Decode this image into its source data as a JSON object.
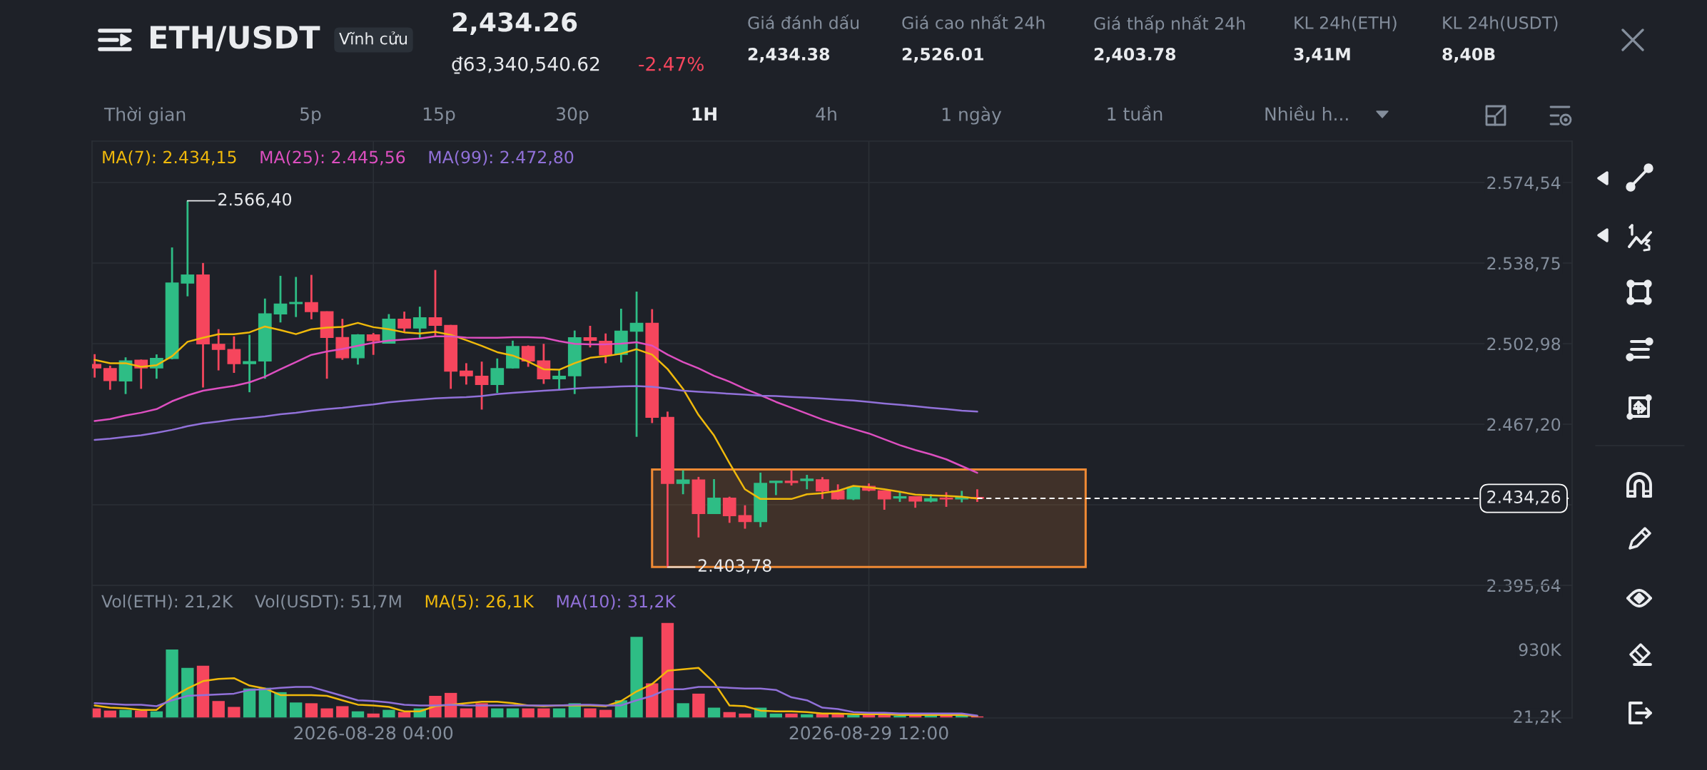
{
  "chart_data": [
    {
      "type": "other",
      "title": "ETH/USDT",
      "annotations": [
        "Vĩnh cửu",
        "2,434.26",
        "₫63,340,540.62",
        "-2.47%",
        "Giá đánh dấu",
        "2,434.38",
        "Giá cao nhất 24h",
        "2,526.01",
        "Giá thấp nhất 24h",
        "2,403.78",
        "KL 24h(ETH)",
        "3,41M",
        "KL 24h(USDT)",
        "8,40B",
        "Thời gian",
        "5p",
        "15p",
        "30p",
        "1H",
        "4h",
        "1 ngày",
        "1 tuần",
        "Nhiều h..."
      ]
    },
    {
      "type": "candlestick",
      "x": [
        "2026-08-27T10:00",
        "2026-08-27T11:00",
        "2026-08-27T12:00",
        "2026-08-27T13:00",
        "2026-08-27T14:00",
        "2026-08-27T15:00",
        "2026-08-27T16:00",
        "2026-08-27T17:00",
        "2026-08-27T18:00",
        "2026-08-27T19:00",
        "2026-08-27T20:00",
        "2026-08-27T21:00",
        "2026-08-27T22:00",
        "2026-08-27T23:00",
        "2026-08-28T00:00",
        "2026-08-28T01:00",
        "2026-08-28T02:00",
        "2026-08-28T03:00",
        "2026-08-28T04:00",
        "2026-08-28T05:00",
        "2026-08-28T06:00",
        "2026-08-28T07:00",
        "2026-08-28T08:00",
        "2026-08-28T09:00",
        "2026-08-28T10:00",
        "2026-08-28T11:00",
        "2026-08-28T12:00",
        "2026-08-28T13:00",
        "2026-08-28T14:00",
        "2026-08-28T15:00",
        "2026-08-28T16:00",
        "2026-08-28T17:00",
        "2026-08-28T18:00",
        "2026-08-28T19:00",
        "2026-08-28T20:00",
        "2026-08-28T21:00",
        "2026-08-28T22:00",
        "2026-08-28T23:00",
        "2026-08-29T00:00",
        "2026-08-29T01:00",
        "2026-08-29T02:00",
        "2026-08-29T03:00",
        "2026-08-29T04:00",
        "2026-08-29T05:00",
        "2026-08-29T06:00",
        "2026-08-29T07:00",
        "2026-08-29T08:00",
        "2026-08-29T09:00",
        "2026-08-29T10:00",
        "2026-08-29T11:00",
        "2026-08-29T12:00",
        "2026-08-29T13:00",
        "2026-08-29T14:00",
        "2026-08-29T15:00",
        "2026-08-29T16:00",
        "2026-08-29T17:00",
        "2026-08-29T18:00",
        "2026-08-29T19:00"
      ],
      "ohlc": [
        [
          2493.7,
          2498.3,
          2487.9,
          2492.2
        ],
        [
          2491.9,
          2493.2,
          2482.5,
          2486.6
        ],
        [
          2486.4,
          2496.9,
          2480.6,
          2495.3
        ],
        [
          2495.6,
          2495.9,
          2482.9,
          2492.2
        ],
        [
          2492.2,
          2498.2,
          2487.4,
          2496.4
        ],
        [
          2496.4,
          2545.7,
          2496.0,
          2529.9
        ],
        [
          2529.9,
          2566.4,
          2524.0,
          2533.5
        ],
        [
          2533.5,
          2538.8,
          2483.5,
          2502.9
        ],
        [
          2502.7,
          2509.4,
          2491.1,
          2500.4
        ],
        [
          2500.4,
          2506.2,
          2490.0,
          2494.1
        ],
        [
          2494.1,
          2506.9,
          2481.4,
          2495.0
        ],
        [
          2495.3,
          2523.0,
          2487.4,
          2516.2
        ],
        [
          2516.2,
          2533.1,
          2512.4,
          2520.6
        ],
        [
          2520.8,
          2532.6,
          2514.8,
          2521.3
        ],
        [
          2521.2,
          2533.5,
          2513.8,
          2517.2
        ],
        [
          2517.2,
          2517.3,
          2487.4,
          2505.7
        ],
        [
          2505.7,
          2514.0,
          2495.8,
          2496.7
        ],
        [
          2496.7,
          2507.2,
          2493.7,
          2506.9
        ],
        [
          2506.9,
          2507.7,
          2498.0,
          2504.3
        ],
        [
          2503.2,
          2516.1,
          2503.0,
          2513.8
        ],
        [
          2513.8,
          2517.2,
          2508.0,
          2509.9
        ],
        [
          2509.9,
          2519.4,
          2505.3,
          2514.5
        ],
        [
          2514.5,
          2535.7,
          2506.2,
          2511.1
        ],
        [
          2511.1,
          2511.3,
          2482.9,
          2490.8
        ],
        [
          2490.8,
          2494.3,
          2484.8,
          2488.7
        ],
        [
          2488.5,
          2495.0,
          2473.7,
          2484.8
        ],
        [
          2484.8,
          2496.4,
          2481.1,
          2491.9
        ],
        [
          2492.2,
          2504.3,
          2491.9,
          2501.7
        ],
        [
          2501.7,
          2502.2,
          2492.7,
          2495.3
        ],
        [
          2495.3,
          2502.9,
          2485.1,
          2487.4
        ],
        [
          2487.4,
          2491.6,
          2482.1,
          2488.5
        ],
        [
          2488.7,
          2508.8,
          2480.6,
          2505.6
        ],
        [
          2505.6,
          2510.9,
          2501.3,
          2504.5
        ],
        [
          2504.0,
          2507.5,
          2494.3,
          2498.0
        ],
        [
          2498.2,
          2518.5,
          2494.6,
          2508.5
        ],
        [
          2508.5,
          2526.1,
          2461.6,
          2512.0
        ],
        [
          2512.0,
          2518.3,
          2467.7,
          2470.3
        ],
        [
          2470.2,
          2472.8,
          2403.78,
          2440.9
        ],
        [
          2440.9,
          2446.7,
          2436.1,
          2442.4
        ],
        [
          2442.4,
          2443.8,
          2416.9,
          2427.5
        ],
        [
          2427.5,
          2442.8,
          2427.3,
          2434.4
        ],
        [
          2434.4,
          2435.0,
          2423.4,
          2426.6
        ],
        [
          2426.6,
          2431.2,
          2420.8,
          2424.0
        ],
        [
          2424.0,
          2445.7,
          2421.5,
          2440.9
        ],
        [
          2441.3,
          2442.0,
          2435.7,
          2441.9
        ],
        [
          2441.9,
          2446.7,
          2440.0,
          2441.3
        ],
        [
          2442.2,
          2444.7,
          2438.3,
          2442.8
        ],
        [
          2442.5,
          2443.7,
          2434.0,
          2437.6
        ],
        [
          2437.6,
          2440.5,
          2433.7,
          2434.0
        ],
        [
          2434.0,
          2440.0,
          2433.5,
          2439.2
        ],
        [
          2439.6,
          2440.9,
          2437.4,
          2437.9
        ],
        [
          2437.6,
          2437.8,
          2429.2,
          2434.0
        ],
        [
          2434.4,
          2437.0,
          2432.7,
          2435.0
        ],
        [
          2435.0,
          2435.2,
          2430.1,
          2433.1
        ],
        [
          2433.1,
          2436.1,
          2432.5,
          2434.1
        ],
        [
          2434.4,
          2437.0,
          2430.5,
          2434.0
        ],
        [
          2434.0,
          2437.6,
          2432.5,
          2434.8
        ],
        [
          2434.7,
          2438.3,
          2432.7,
          2434.26
        ]
      ],
      "colors": [
        "#f6465d",
        "#f6465d",
        "#2ebd85",
        "#f6465d",
        "#2ebd85",
        "#2ebd85",
        "#2ebd85",
        "#f6465d",
        "#f6465d",
        "#f6465d",
        "#2ebd85",
        "#2ebd85",
        "#2ebd85",
        "#2ebd85",
        "#f6465d",
        "#f6465d",
        "#f6465d",
        "#2ebd85",
        "#f6465d",
        "#2ebd85",
        "#f6465d",
        "#2ebd85",
        "#f6465d",
        "#f6465d",
        "#f6465d",
        "#f6465d",
        "#2ebd85",
        "#2ebd85",
        "#f6465d",
        "#f6465d",
        "#2ebd85",
        "#2ebd85",
        "#f6465d",
        "#f6465d",
        "#2ebd85",
        "#2ebd85",
        "#f6465d",
        "#f6465d",
        "#2ebd85",
        "#f6465d",
        "#2ebd85",
        "#f6465d",
        "#f6465d",
        "#2ebd85",
        "#2ebd85",
        "#f6465d",
        "#2ebd85",
        "#f6465d",
        "#f6465d",
        "#2ebd85",
        "#f6465d",
        "#f6465d",
        "#2ebd85",
        "#f6465d",
        "#2ebd85",
        "#f6465d",
        "#2ebd85",
        "#f6465d"
      ],
      "series": [
        {
          "type": "line",
          "name": "MA(7): 2.434,15",
          "color": "#f0b90b",
          "values": [
            2495.8,
            2494.3,
            2494.3,
            2492.7,
            2493.4,
            2497.4,
            2503.8,
            2505.6,
            2507.2,
            2507.2,
            2508.0,
            2510.6,
            2509.0,
            2507.2,
            2509.4,
            2510.1,
            2510.4,
            2512.2,
            2510.3,
            2509.4,
            2508.0,
            2507.5,
            2508.2,
            2506.9,
            2504.5,
            2502.0,
            2499.2,
            2497.7,
            2495.0,
            2491.6,
            2491.4,
            2494.3,
            2496.7,
            2497.4,
            2498.5,
            2500.5,
            2498.1,
            2491.7,
            2482.9,
            2471.3,
            2462.2,
            2449.9,
            2438.3,
            2434.0,
            2434.0,
            2434.0,
            2436.1,
            2436.6,
            2437.6,
            2439.8,
            2439.2,
            2438.3,
            2437.2,
            2435.9,
            2435.6,
            2435.4,
            2435.0,
            2434.2
          ]
        },
        {
          "type": "line",
          "name": "MA(25): 2.445,56",
          "color": "#dd4fc0",
          "values": [
            2468.6,
            2469.5,
            2471.1,
            2472.3,
            2473.9,
            2477.4,
            2480.0,
            2482.1,
            2483.2,
            2484.2,
            2485.8,
            2488.3,
            2491.6,
            2494.8,
            2498.0,
            2499.5,
            2500.6,
            2502.0,
            2503.4,
            2504.3,
            2504.8,
            2505.3,
            2506.2,
            2506.2,
            2505.7,
            2505.6,
            2505.6,
            2505.8,
            2505.8,
            2505.6,
            2504.1,
            2502.9,
            2502.7,
            2502.7,
            2503.0,
            2503.6,
            2502.1,
            2498.1,
            2494.8,
            2492.0,
            2488.7,
            2486.1,
            2482.9,
            2480.1,
            2477.1,
            2474.5,
            2471.9,
            2469.3,
            2467.1,
            2465.1,
            2463.1,
            2460.5,
            2457.9,
            2455.7,
            2453.8,
            2451.6,
            2448.6,
            2445.6
          ]
        },
        {
          "type": "line",
          "name": "MA(99): 2.472,80",
          "color": "#9171d9",
          "values": [
            2460.2,
            2460.8,
            2461.6,
            2462.3,
            2463.4,
            2464.7,
            2466.3,
            2467.6,
            2468.4,
            2469.3,
            2470.0,
            2470.7,
            2471.6,
            2472.3,
            2473.2,
            2473.9,
            2474.5,
            2475.3,
            2476.0,
            2476.9,
            2477.6,
            2478.1,
            2478.7,
            2479.0,
            2479.2,
            2479.7,
            2480.6,
            2481.1,
            2481.6,
            2482.1,
            2482.5,
            2483.0,
            2483.4,
            2483.7,
            2484.0,
            2484.1,
            2483.8,
            2483.0,
            2482.1,
            2481.6,
            2481.2,
            2480.7,
            2480.3,
            2479.9,
            2479.7,
            2479.3,
            2479.0,
            2478.6,
            2478.1,
            2477.7,
            2477.1,
            2476.4,
            2475.8,
            2475.2,
            2474.5,
            2473.9,
            2473.2,
            2472.8
          ]
        }
      ],
      "xlim": [
        "2026-08-27T09:50",
        "2026-08-31T09:25"
      ],
      "xticks": [
        {
          "value": "2026-08-28T04:00",
          "label": null
        },
        {
          "value": "2026-08-29T12:00",
          "label": null
        }
      ],
      "ylim": [
        2395.64,
        2592.9
      ],
      "yticks": [
        {
          "value": 2574.54,
          "label": "2.574,54"
        },
        {
          "value": 2538.75,
          "label": "2.538,75"
        },
        {
          "value": 2502.98,
          "label": "2.502,98"
        },
        {
          "value": 2467.2,
          "label": "2.467,20"
        },
        {
          "value": 2431.42,
          "label": null
        },
        {
          "value": 2395.64,
          "label": "2.395,64"
        }
      ],
      "grid": true,
      "tick_labels": "y",
      "legend": "top left",
      "annotations": [
        {
          "text": "2.566,40",
          "x": "2026-08-27T16:00",
          "y": 2566.4
        },
        {
          "text": "2.403,78",
          "x": "2026-08-28T23:00",
          "y": 2403.78
        }
      ],
      "ref_lines": [
        {
          "axis": "y",
          "value": 2434.26,
          "label": "2.434,26",
          "line_style": "dashed",
          "color": "#ffffff"
        }
      ],
      "bands": [
        {
          "axis": "y",
          "from": 2403.78,
          "to": 2447.1,
          "color": "#f08a34"
        }
      ]
    },
    {
      "type": "bar",
      "x": [
        "2026-08-27T10:00",
        "2026-08-27T11:00",
        "2026-08-27T12:00",
        "2026-08-27T13:00",
        "2026-08-27T14:00",
        "2026-08-27T15:00",
        "2026-08-27T16:00",
        "2026-08-27T17:00",
        "2026-08-27T18:00",
        "2026-08-27T19:00",
        "2026-08-27T20:00",
        "2026-08-27T21:00",
        "2026-08-27T22:00",
        "2026-08-27T23:00",
        "2026-08-28T00:00",
        "2026-08-28T01:00",
        "2026-08-28T02:00",
        "2026-08-28T03:00",
        "2026-08-28T04:00",
        "2026-08-28T05:00",
        "2026-08-28T06:00",
        "2026-08-28T07:00",
        "2026-08-28T08:00",
        "2026-08-28T09:00",
        "2026-08-28T10:00",
        "2026-08-28T11:00",
        "2026-08-28T12:00",
        "2026-08-28T13:00",
        "2026-08-28T14:00",
        "2026-08-28T15:00",
        "2026-08-28T16:00",
        "2026-08-28T17:00",
        "2026-08-28T18:00",
        "2026-08-28T19:00",
        "2026-08-28T20:00",
        "2026-08-28T21:00",
        "2026-08-28T22:00",
        "2026-08-28T23:00",
        "2026-08-29T00:00",
        "2026-08-29T01:00",
        "2026-08-29T02:00",
        "2026-08-29T03:00",
        "2026-08-29T04:00",
        "2026-08-29T05:00",
        "2026-08-29T06:00",
        "2026-08-29T07:00",
        "2026-08-29T08:00",
        "2026-08-29T09:00",
        "2026-08-29T10:00",
        "2026-08-29T11:00",
        "2026-08-29T12:00",
        "2026-08-29T13:00",
        "2026-08-29T14:00",
        "2026-08-29T15:00",
        "2026-08-29T16:00",
        "2026-08-29T17:00",
        "2026-08-29T18:00",
        "2026-08-29T19:00"
      ],
      "series": [
        {
          "type": "bar",
          "name": "Vol(ETH): 21,2K",
          "colors": [
            "#f6465d",
            "#f6465d",
            "#2ebd85",
            "#f6465d",
            "#2ebd85",
            "#2ebd85",
            "#2ebd85",
            "#f6465d",
            "#f6465d",
            "#f6465d",
            "#2ebd85",
            "#2ebd85",
            "#2ebd85",
            "#2ebd85",
            "#f6465d",
            "#f6465d",
            "#f6465d",
            "#2ebd85",
            "#f6465d",
            "#2ebd85",
            "#f6465d",
            "#2ebd85",
            "#f6465d",
            "#f6465d",
            "#f6465d",
            "#f6465d",
            "#2ebd85",
            "#2ebd85",
            "#f6465d",
            "#f6465d",
            "#2ebd85",
            "#2ebd85",
            "#f6465d",
            "#f6465d",
            "#2ebd85",
            "#2ebd85",
            "#f6465d",
            "#f6465d",
            "#2ebd85",
            "#f6465d",
            "#2ebd85",
            "#f6465d",
            "#f6465d",
            "#2ebd85",
            "#2ebd85",
            "#f6465d",
            "#2ebd85",
            "#f6465d",
            "#f6465d",
            "#2ebd85",
            "#f6465d",
            "#f6465d",
            "#2ebd85",
            "#f6465d",
            "#2ebd85",
            "#f6465d",
            "#2ebd85",
            "#f6465d"
          ],
          "values": [
            130,
            100,
            110,
            100,
            90,
            930,
            680,
            710,
            230,
            150,
            400,
            410,
            350,
            210,
            200,
            130,
            160,
            90,
            60,
            110,
            80,
            130,
            300,
            340,
            130,
            200,
            130,
            130,
            130,
            130,
            130,
            200,
            130,
            110,
            240,
            1100,
            470,
            1290,
            200,
            330,
            140,
            80,
            60,
            140,
            60,
            60,
            50,
            60,
            50,
            40,
            40,
            40,
            30,
            30,
            30,
            30,
            30,
            21.2
          ]
        },
        {
          "type": "line",
          "name": "MA(5): 26,1K",
          "color": "#f0b90b",
          "values": [
            170,
            140,
            130,
            110,
            110,
            280,
            400,
            500,
            530,
            540,
            440,
            400,
            310,
            310,
            310,
            300,
            240,
            180,
            170,
            150,
            90,
            90,
            160,
            180,
            200,
            220,
            220,
            200,
            170,
            160,
            170,
            170,
            170,
            160,
            230,
            360,
            460,
            640,
            660,
            680,
            480,
            170,
            160,
            100,
            90,
            90,
            80,
            60,
            60,
            50,
            50,
            50,
            40,
            40,
            40,
            40,
            40,
            26.1
          ]
        },
        {
          "type": "line",
          "name": "MA(10): 31,2K",
          "color": "#9171d9",
          "values": [
            200,
            190,
            180,
            180,
            160,
            240,
            300,
            310,
            320,
            330,
            380,
            390,
            410,
            420,
            420,
            360,
            300,
            240,
            230,
            210,
            180,
            170,
            170,
            180,
            170,
            170,
            170,
            170,
            170,
            170,
            170,
            180,
            180,
            170,
            170,
            240,
            300,
            390,
            390,
            420,
            420,
            410,
            400,
            400,
            380,
            280,
            240,
            140,
            120,
            80,
            70,
            70,
            60,
            60,
            60,
            60,
            60,
            31.2
          ]
        }
      ],
      "annotations": [
        "Vol(USDT): 51,7M"
      ],
      "xlim": [
        "2026-08-27T09:50",
        "2026-08-31T09:25"
      ],
      "xticks": [
        {
          "value": "2026-08-28T04:00",
          "label": "2026-08-28 04:00"
        },
        {
          "value": "2026-08-29T12:00",
          "label": "2026-08-29 12:00"
        }
      ],
      "ylim": [
        0,
        1800
      ],
      "yticks": [
        {
          "value": 930,
          "label": "930K"
        },
        {
          "value": 21.2,
          "label": "21,2K"
        }
      ],
      "grid": "x",
      "legend": "top left"
    }
  ]
}
